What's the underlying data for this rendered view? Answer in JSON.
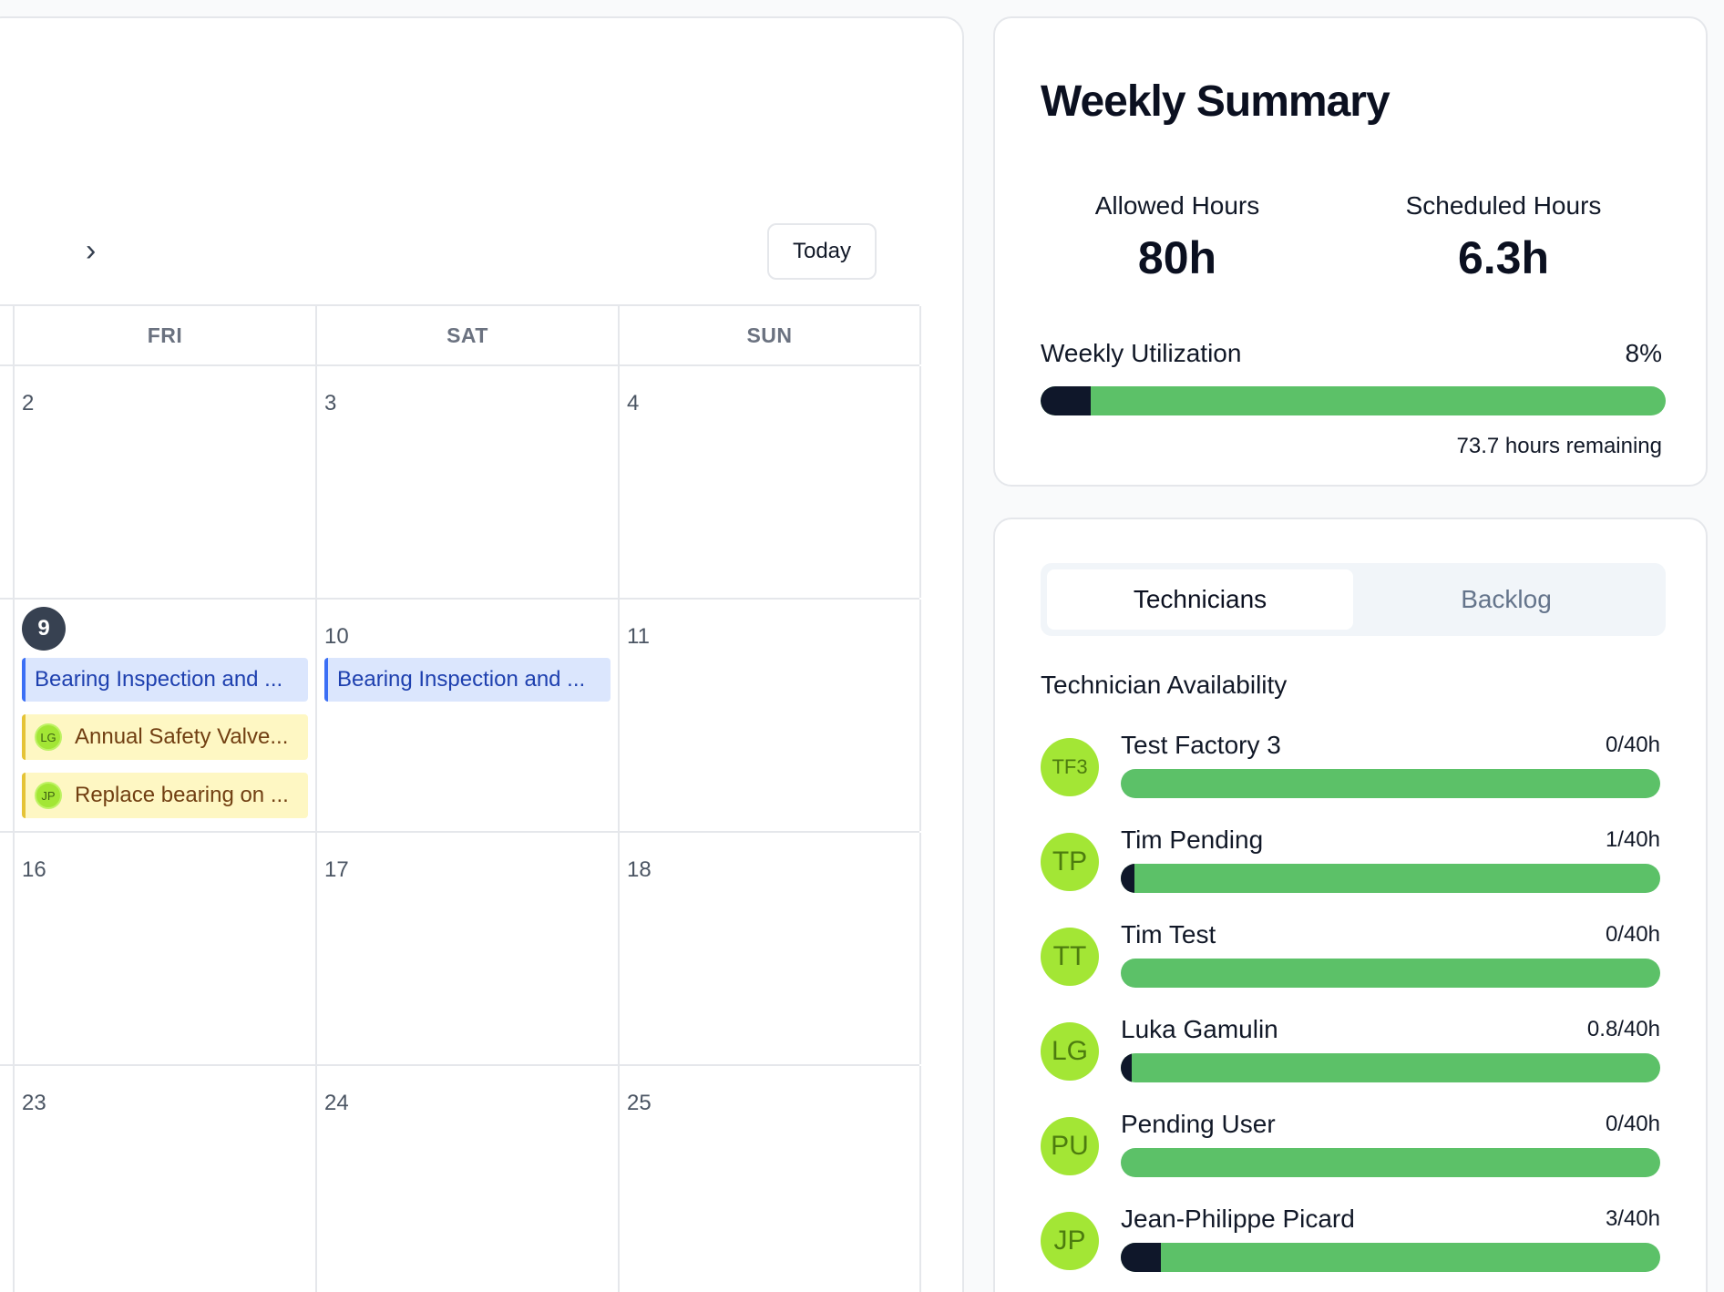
{
  "calendar": {
    "today_label": "Today",
    "days_of_week": [
      "FRI",
      "SAT",
      "SUN"
    ],
    "weeks": [
      {
        "days": [
          {
            "num": "2",
            "events": []
          },
          {
            "num": "3",
            "events": []
          },
          {
            "num": "4",
            "events": []
          }
        ]
      },
      {
        "days": [
          {
            "num": "9",
            "today": true,
            "events": [
              {
                "title": "Bearing Inspection and ...",
                "color": "blue"
              },
              {
                "title": "Annual Safety Valve...",
                "color": "yellow",
                "initials": "LG"
              },
              {
                "title": "Replace bearing on ...",
                "color": "yellow",
                "initials": "JP"
              }
            ]
          },
          {
            "num": "10",
            "events": [
              {
                "title": "Bearing Inspection and ...",
                "color": "blue"
              }
            ]
          },
          {
            "num": "11",
            "events": []
          }
        ]
      },
      {
        "days": [
          {
            "num": "16",
            "events": []
          },
          {
            "num": "17",
            "events": []
          },
          {
            "num": "18",
            "events": []
          }
        ]
      },
      {
        "days": [
          {
            "num": "23",
            "events": []
          },
          {
            "num": "24",
            "events": []
          },
          {
            "num": "25",
            "events": []
          }
        ]
      }
    ]
  },
  "summary": {
    "title": "Weekly Summary",
    "allowed_label": "Allowed Hours",
    "allowed_value": "80h",
    "scheduled_label": "Scheduled Hours",
    "scheduled_value": "6.3h",
    "utilization_label": "Weekly Utilization",
    "utilization_text": "8%",
    "utilization_fraction": 0.08,
    "remaining": "73.7 hours remaining"
  },
  "technicians_panel": {
    "tabs": [
      "Technicians",
      "Backlog"
    ],
    "active_tab": 0,
    "availability_title": "Technician Availability",
    "technicians": [
      {
        "initials": "TF3",
        "name": "Test Factory 3",
        "hours": "0/40h",
        "used": 0,
        "capacity": 40
      },
      {
        "initials": "TP",
        "name": "Tim Pending",
        "hours": "1/40h",
        "used": 1,
        "capacity": 40
      },
      {
        "initials": "TT",
        "name": "Tim Test",
        "hours": "0/40h",
        "used": 0,
        "capacity": 40
      },
      {
        "initials": "LG",
        "name": "Luka Gamulin",
        "hours": "0.8/40h",
        "used": 0.8,
        "capacity": 40
      },
      {
        "initials": "PU",
        "name": "Pending User",
        "hours": "0/40h",
        "used": 0,
        "capacity": 40
      },
      {
        "initials": "JP",
        "name": "Jean-Philippe Picard",
        "hours": "3/40h",
        "used": 3,
        "capacity": 40
      }
    ]
  },
  "colors": {
    "bar_green": "#5cc168",
    "bar_dark": "#0f172a",
    "avatar_green": "#a3e635"
  }
}
